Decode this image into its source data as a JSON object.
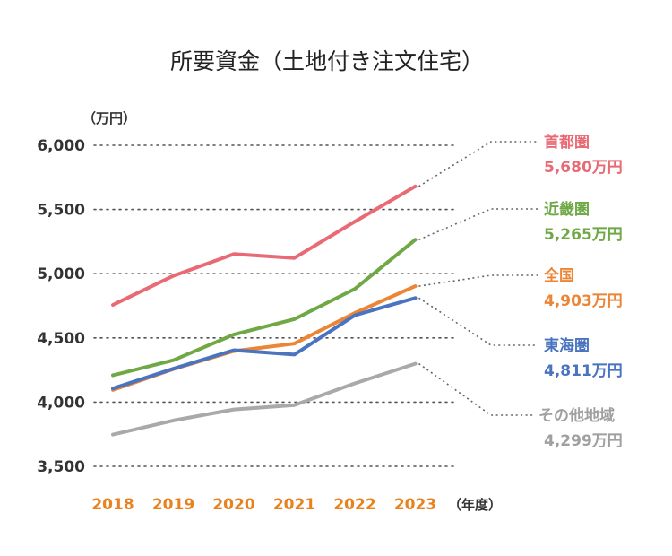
{
  "chart_data": {
    "type": "line",
    "title": "所要資金（土地付き注文住宅）",
    "ylabel": "（万円）",
    "xlabel": "（年度）",
    "x": [
      "2018",
      "2019",
      "2020",
      "2021",
      "2022",
      "2023"
    ],
    "ylim": [
      3500,
      6000
    ],
    "yticks": [
      {
        "value": 3500,
        "label": "3,500"
      },
      {
        "value": 4000,
        "label": "4,000"
      },
      {
        "value": 4500,
        "label": "4,500"
      },
      {
        "value": 5000,
        "label": "5,000"
      },
      {
        "value": 5500,
        "label": "5,500"
      },
      {
        "value": 6000,
        "label": "6,000"
      }
    ],
    "grid": true,
    "x_tick_color": "#e8821e",
    "series": [
      {
        "name": "首都圏",
        "value_label": "5,680万円",
        "color": "#e96a74",
        "values": [
          4757,
          4983,
          5153,
          5122,
          5406,
          5680
        ]
      },
      {
        "name": "近畿圏",
        "value_label": "5,265万円",
        "color": "#6fa845",
        "values": [
          4209,
          4326,
          4526,
          4646,
          4881,
          5265
        ]
      },
      {
        "name": "全国",
        "value_label": "4,903万円",
        "color": "#ec8536",
        "values": [
          4095,
          4257,
          4397,
          4455,
          4694,
          4903
        ]
      },
      {
        "name": "東海圏",
        "value_label": "4,811万円",
        "color": "#4a74c0",
        "values": [
          4106,
          4260,
          4404,
          4370,
          4676,
          4811
        ]
      },
      {
        "name": "その他地域",
        "value_label": "4,299万円",
        "color": "#a9a9a9",
        "values": [
          3747,
          3857,
          3943,
          3976,
          4146,
          4299
        ]
      }
    ]
  }
}
